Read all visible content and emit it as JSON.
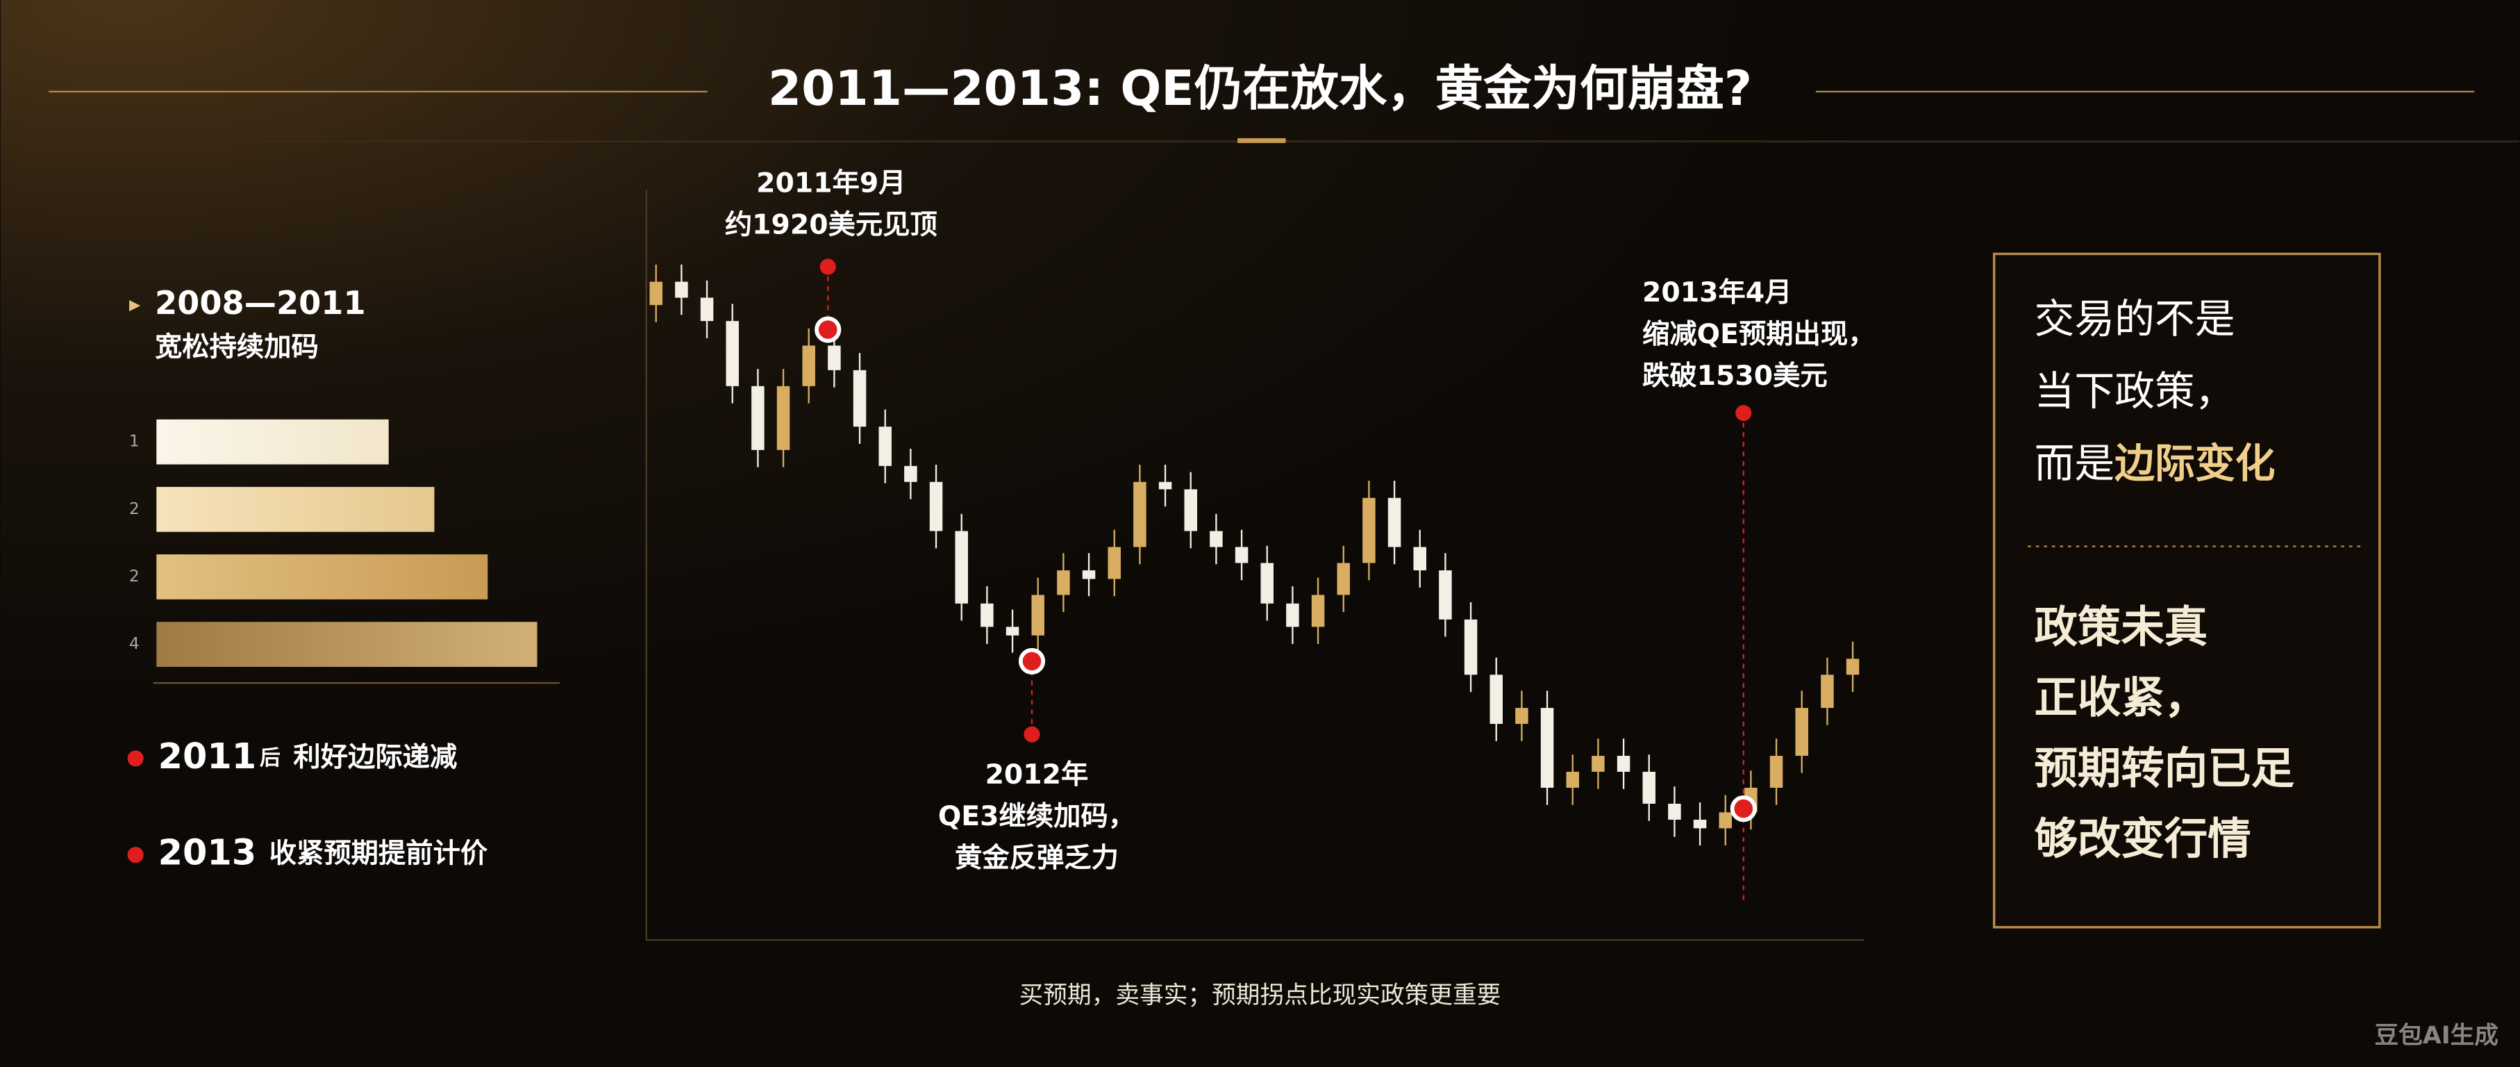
{
  "header": {
    "title": "2011—2013: QE仍在放水，黄金为何崩盘?"
  },
  "left_panel": {
    "heading": "2008—2011",
    "subheading": "宽松持续加码",
    "bars": {
      "labels": [
        "1",
        "2",
        "2",
        "4"
      ],
      "values": [
        61,
        73,
        87,
        100
      ]
    },
    "bullets": [
      {
        "year": "2011",
        "suffix": "后",
        "text": "利好边际递减"
      },
      {
        "year": "2013",
        "text": "收紧预期提前计价"
      }
    ]
  },
  "chart_data": {
    "type": "candlestick",
    "ylim": [
      1423,
      2034
    ],
    "open": [
      1940,
      1959,
      1946,
      1927,
      1874,
      1822,
      1874,
      1907,
      1887,
      1841,
      1809,
      1796,
      1756,
      1697,
      1678,
      1671,
      1704,
      1724,
      1717,
      1743,
      1796,
      1790,
      1756,
      1743,
      1730,
      1697,
      1678,
      1704,
      1730,
      1783,
      1743,
      1724,
      1684,
      1639,
      1599,
      1612,
      1547,
      1560,
      1573,
      1560,
      1534,
      1521,
      1514,
      1527,
      1547,
      1573,
      1612,
      1639
    ],
    "high": [
      1973,
      1973,
      1960,
      1941,
      1888,
      1888,
      1921,
      1921,
      1901,
      1855,
      1823,
      1810,
      1770,
      1711,
      1692,
      1718,
      1738,
      1738,
      1757,
      1810,
      1810,
      1804,
      1770,
      1757,
      1744,
      1711,
      1718,
      1744,
      1797,
      1797,
      1757,
      1738,
      1698,
      1653,
      1626,
      1626,
      1574,
      1587,
      1587,
      1574,
      1548,
      1535,
      1541,
      1561,
      1587,
      1626,
      1653,
      1666
    ],
    "low": [
      1926,
      1932,
      1913,
      1860,
      1808,
      1808,
      1860,
      1873,
      1827,
      1795,
      1782,
      1742,
      1683,
      1664,
      1657,
      1657,
      1690,
      1703,
      1703,
      1729,
      1776,
      1742,
      1729,
      1716,
      1683,
      1664,
      1664,
      1690,
      1716,
      1729,
      1710,
      1670,
      1625,
      1585,
      1585,
      1533,
      1533,
      1546,
      1546,
      1520,
      1507,
      1500,
      1500,
      1513,
      1533,
      1559,
      1598,
      1625
    ],
    "close": [
      1959,
      1946,
      1927,
      1874,
      1822,
      1874,
      1907,
      1887,
      1841,
      1809,
      1796,
      1756,
      1697,
      1678,
      1671,
      1704,
      1724,
      1717,
      1743,
      1796,
      1790,
      1756,
      1743,
      1730,
      1697,
      1678,
      1704,
      1730,
      1783,
      1743,
      1724,
      1684,
      1639,
      1599,
      1612,
      1547,
      1560,
      1573,
      1560,
      1534,
      1521,
      1514,
      1527,
      1547,
      1573,
      1612,
      1639,
      1652
    ],
    "up_color": "#d9ad62",
    "down_color": "#f4efe4",
    "annotations": [
      {
        "lines": [
          "2011年9月",
          "约1920美元见顶"
        ],
        "value": 1920
      },
      {
        "lines": [
          "2012年",
          "QE3继续加码，",
          "黄金反弹乏力"
        ],
        "value": 1650
      },
      {
        "lines": [
          "2013年4月",
          "缩减QE预期出现，",
          "跌破1530美元"
        ],
        "value": 1530
      }
    ],
    "caption": "买预期，卖事实；预期拐点比现实政策更重要"
  },
  "right_panel": {
    "top_lines": [
      "交易的不是",
      "当下政策，"
    ],
    "top_last": [
      "而是",
      "边际变化"
    ],
    "bottom_lines": [
      "政策未真",
      "正收紧，",
      "预期转向已足",
      "够改变行情"
    ]
  },
  "footer": {
    "watermark": "豆包AI生成"
  }
}
